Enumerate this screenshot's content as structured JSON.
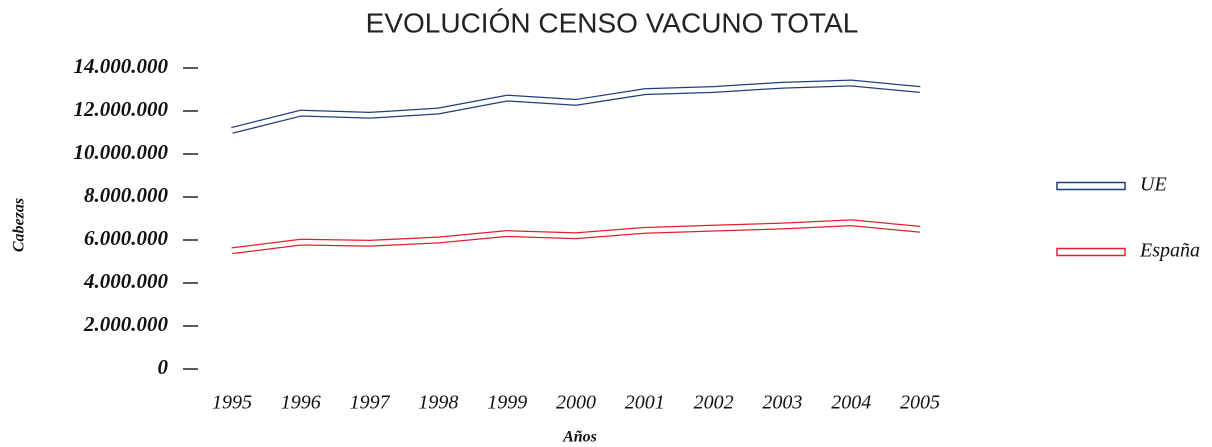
{
  "chart_data": {
    "type": "line",
    "title": "EVOLUCIÓN CENSO VACUNO TOTAL",
    "x_label": "Años",
    "y_label": "Cabezas",
    "categories": [
      "1995",
      "1996",
      "1997",
      "1998",
      "1999",
      "2000",
      "2001",
      "2002",
      "2003",
      "2004",
      "2005"
    ],
    "series": [
      {
        "name": "UE",
        "color": "#1f3f7a",
        "values": [
          11100000,
          11900000,
          11800000,
          12000000,
          12600000,
          12400000,
          12900000,
          13000000,
          13200000,
          13300000,
          13000000
        ]
      },
      {
        "name": "España",
        "color": "#e0202e",
        "values": [
          5500000,
          5900000,
          5850000,
          6000000,
          6300000,
          6200000,
          6450000,
          6550000,
          6650000,
          6800000,
          6500000
        ]
      }
    ],
    "ylim": [
      0,
      14000000
    ],
    "yticks": [
      0,
      {
        "value": 2000000,
        "label": "2.000.000"
      },
      {
        "value": 4000000,
        "label": "4.000.000"
      },
      {
        "value": 6000000,
        "label": "6.000.000"
      },
      {
        "value": 8000000,
        "label": "8.000.000"
      },
      {
        "value": 10000000,
        "label": "10.000.000"
      },
      {
        "value": 12000000,
        "label": "12.000.000"
      },
      {
        "value": 14000000,
        "label": "14.000.000"
      }
    ],
    "legend": "right",
    "grid": false
  }
}
